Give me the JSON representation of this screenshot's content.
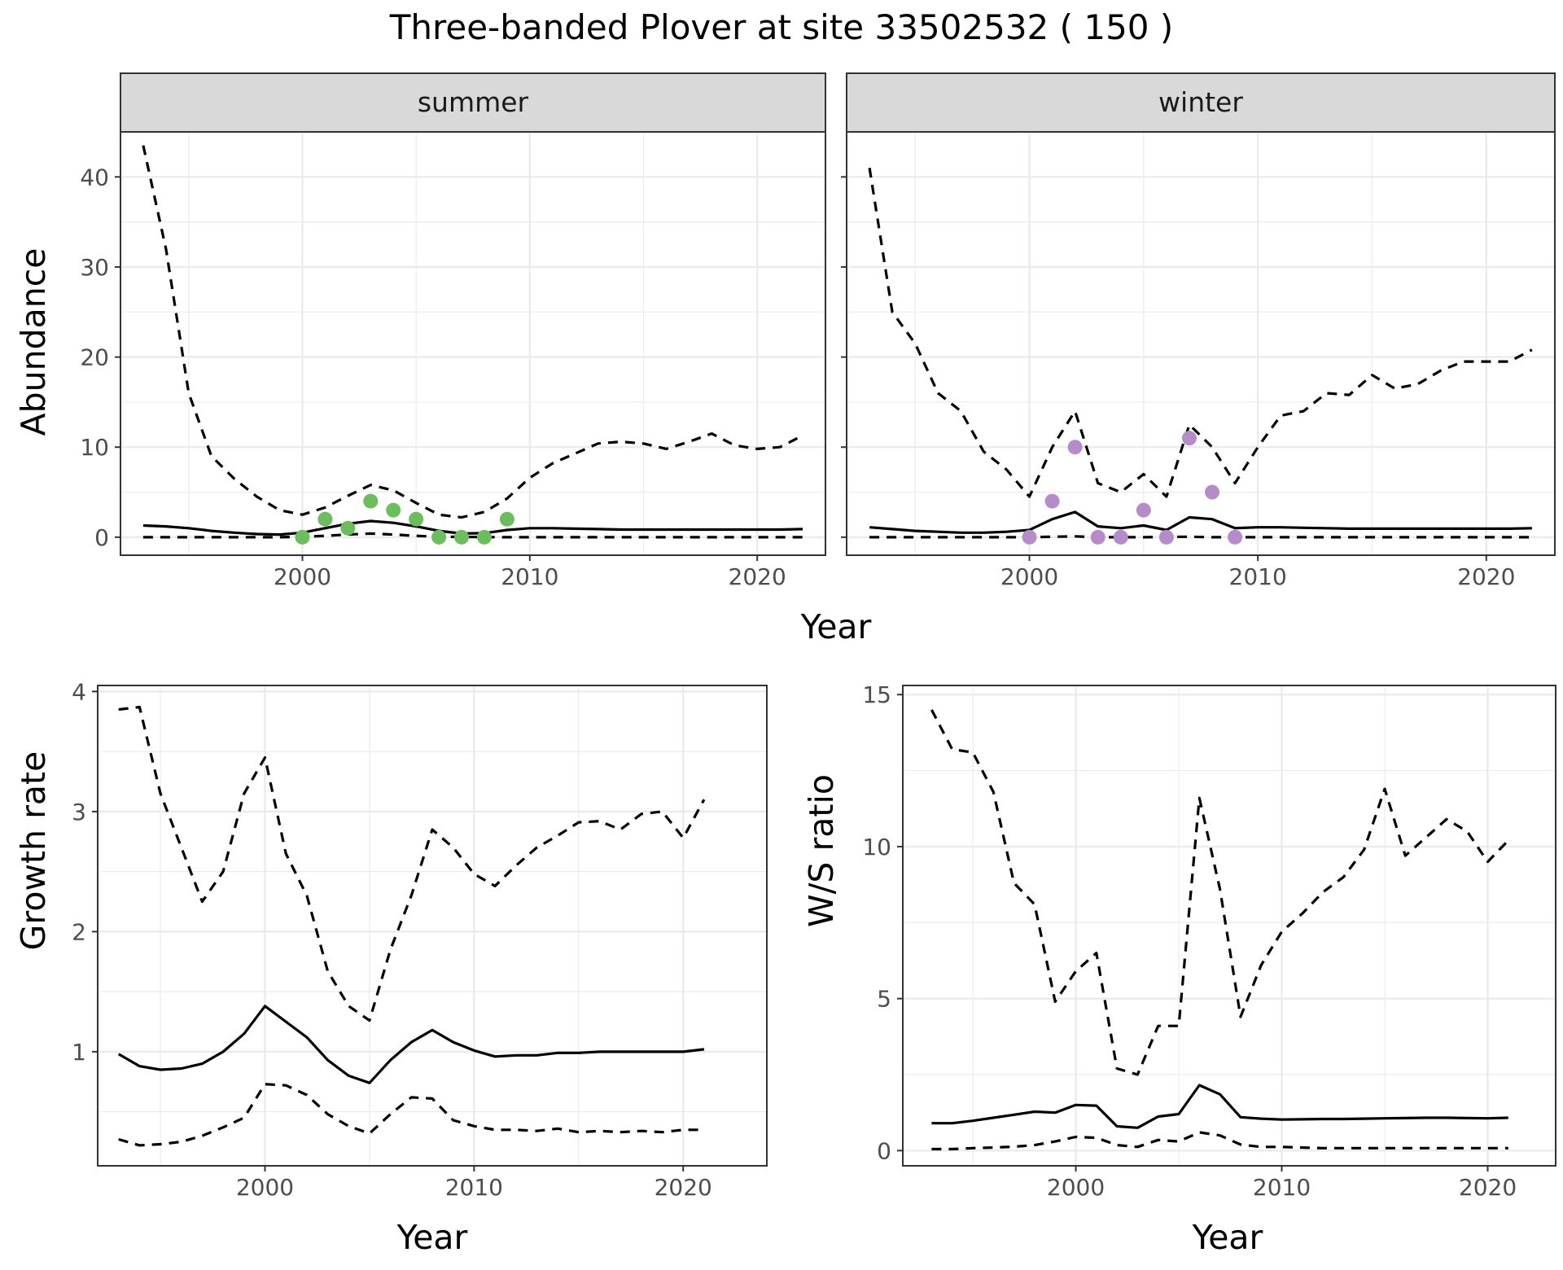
{
  "title": "Three-banded Plover at site 33502532 ( 150 )",
  "colors": {
    "summer_points": "#6BBE5B",
    "winter_points": "#B58BC9",
    "strip_fill": "#D9D9D9",
    "grid": "#EBEBEB",
    "panel_border": "#333333",
    "line": "#000000"
  },
  "chart_data": [
    {
      "type": "line",
      "title": "",
      "facet": "summer",
      "xlabel": "Year",
      "ylabel": "Abundance",
      "xlim": [
        1992,
        2023
      ],
      "ylim": [
        -2,
        45
      ],
      "x_ticks": [
        2000,
        2010,
        2020
      ],
      "y_ticks": [
        0,
        10,
        20,
        30,
        40
      ],
      "grid": true,
      "series": [
        {
          "style": "solid",
          "x": [
            1993,
            1994,
            1995,
            1996,
            1997,
            1998,
            1999,
            2000,
            2001,
            2002,
            2003,
            2004,
            2005,
            2006,
            2007,
            2008,
            2009,
            2010,
            2011,
            2012,
            2013,
            2014,
            2015,
            2016,
            2017,
            2018,
            2019,
            2020,
            2021,
            2022
          ],
          "y": [
            1.3,
            1.2,
            1.0,
            0.7,
            0.5,
            0.35,
            0.3,
            0.5,
            1.0,
            1.5,
            1.8,
            1.6,
            1.2,
            0.7,
            0.4,
            0.45,
            0.8,
            1.0,
            1.0,
            0.95,
            0.9,
            0.85,
            0.85,
            0.85,
            0.85,
            0.85,
            0.85,
            0.85,
            0.85,
            0.9
          ]
        },
        {
          "style": "dashed",
          "x": [
            1993,
            1994,
            1995,
            1996,
            1997,
            1998,
            1999,
            2000,
            2001,
            2002,
            2003,
            2004,
            2005,
            2006,
            2007,
            2008,
            2009,
            2010,
            2011,
            2012,
            2013,
            2014,
            2015,
            2016,
            2017,
            2018,
            2019,
            2020,
            2021,
            2022
          ],
          "y": [
            43.5,
            32,
            16,
            9,
            6.5,
            4.5,
            3,
            2.5,
            3.3,
            4.6,
            5.8,
            5.2,
            3.8,
            2.5,
            2.2,
            2.8,
            4.3,
            6.6,
            8.2,
            9.3,
            10.4,
            10.6,
            10.4,
            9.8,
            10.6,
            11.5,
            10.2,
            9.8,
            10.0,
            11.3
          ]
        },
        {
          "style": "dashed",
          "x": [
            1993,
            1996,
            1999,
            2000,
            2001,
            2002,
            2003,
            2004,
            2005,
            2006,
            2009,
            2012,
            2016,
            2020,
            2022
          ],
          "y": [
            0,
            0,
            0,
            0.05,
            0.15,
            0.3,
            0.4,
            0.3,
            0.15,
            0.05,
            0,
            0,
            0,
            0,
            0
          ]
        }
      ],
      "points": {
        "x": [
          2000,
          2001,
          2002,
          2003,
          2004,
          2005,
          2006,
          2007,
          2008,
          2009
        ],
        "y": [
          0,
          2,
          1,
          4,
          3,
          2,
          0,
          0,
          0,
          2
        ]
      }
    },
    {
      "type": "line",
      "title": "",
      "facet": "winter",
      "xlabel": "Year",
      "ylabel": "Abundance",
      "xlim": [
        1992,
        2023
      ],
      "ylim": [
        -2,
        45
      ],
      "x_ticks": [
        2000,
        2010,
        2020
      ],
      "y_ticks": [
        0,
        10,
        20,
        30,
        40
      ],
      "grid": true,
      "series": [
        {
          "style": "solid",
          "x": [
            1993,
            1994,
            1995,
            1996,
            1997,
            1998,
            1999,
            2000,
            2001,
            2002,
            2003,
            2004,
            2005,
            2006,
            2007,
            2008,
            2009,
            2010,
            2011,
            2012,
            2013,
            2014,
            2015,
            2016,
            2017,
            2018,
            2019,
            2020,
            2021,
            2022
          ],
          "y": [
            1.1,
            0.9,
            0.7,
            0.6,
            0.5,
            0.5,
            0.6,
            0.8,
            2.0,
            2.8,
            1.2,
            1.0,
            1.3,
            0.8,
            2.2,
            2.0,
            1.0,
            1.1,
            1.1,
            1.05,
            1.0,
            0.95,
            0.95,
            0.95,
            0.95,
            0.95,
            0.95,
            0.95,
            0.95,
            1.0
          ]
        },
        {
          "style": "dashed",
          "x": [
            1993,
            1994,
            1995,
            1996,
            1997,
            1998,
            1999,
            2000,
            2001,
            2002,
            2003,
            2004,
            2005,
            2006,
            2007,
            2008,
            2009,
            2010,
            2011,
            2012,
            2013,
            2014,
            2015,
            2016,
            2017,
            2018,
            2019,
            2020,
            2021,
            2022
          ],
          "y": [
            41,
            25,
            21.5,
            16,
            14,
            9.5,
            7.5,
            4.5,
            10,
            14,
            6,
            5,
            7,
            4.5,
            12.5,
            10,
            6,
            10,
            13.5,
            14,
            16,
            15.8,
            18,
            16.5,
            17,
            18.5,
            19.5,
            19.5,
            19.5,
            20.8
          ]
        },
        {
          "style": "dashed",
          "x": [
            1993,
            1999,
            2000,
            2001,
            2002,
            2003,
            2005,
            2007,
            2008,
            2009,
            2015,
            2022
          ],
          "y": [
            0,
            0,
            0,
            0.05,
            0.1,
            0,
            0,
            0.05,
            0,
            0,
            0,
            0
          ]
        }
      ],
      "points": {
        "x": [
          2000,
          2001,
          2002,
          2003,
          2004,
          2005,
          2006,
          2007,
          2008,
          2009
        ],
        "y": [
          0,
          4,
          10,
          0,
          0,
          3,
          0,
          11,
          5,
          0
        ]
      }
    },
    {
      "type": "line",
      "title": "",
      "xlabel": "Year",
      "ylabel": "Growth rate",
      "xlim": [
        1992,
        2024
      ],
      "ylim": [
        0.05,
        4.05
      ],
      "x_ticks": [
        2000,
        2010,
        2020
      ],
      "y_ticks": [
        1,
        2,
        3,
        4
      ],
      "grid": true,
      "series": [
        {
          "style": "solid",
          "x": [
            1993,
            1994,
            1995,
            1996,
            1997,
            1998,
            1999,
            2000,
            2001,
            2002,
            2003,
            2004,
            2005,
            2006,
            2007,
            2008,
            2009,
            2010,
            2011,
            2012,
            2013,
            2014,
            2015,
            2016,
            2017,
            2018,
            2019,
            2020,
            2021
          ],
          "y": [
            0.98,
            0.88,
            0.85,
            0.86,
            0.9,
            1.0,
            1.15,
            1.38,
            1.25,
            1.12,
            0.93,
            0.8,
            0.74,
            0.93,
            1.08,
            1.18,
            1.08,
            1.01,
            0.96,
            0.97,
            0.97,
            0.99,
            0.99,
            1.0,
            1.0,
            1.0,
            1.0,
            1.0,
            1.02
          ]
        },
        {
          "style": "dashed",
          "x": [
            1993,
            1994,
            1995,
            1996,
            1997,
            1998,
            1999,
            2000,
            2001,
            2002,
            2003,
            2004,
            2005,
            2006,
            2007,
            2008,
            2009,
            2010,
            2011,
            2012,
            2013,
            2014,
            2015,
            2016,
            2017,
            2018,
            2019,
            2020,
            2021
          ],
          "y": [
            3.85,
            3.87,
            3.15,
            2.7,
            2.25,
            2.5,
            3.15,
            3.45,
            2.65,
            2.3,
            1.67,
            1.38,
            1.26,
            1.85,
            2.3,
            2.85,
            2.7,
            2.48,
            2.38,
            2.55,
            2.7,
            2.8,
            2.91,
            2.92,
            2.85,
            2.98,
            3.0,
            2.78,
            3.1
          ]
        },
        {
          "style": "dashed",
          "x": [
            1993,
            1994,
            1995,
            1996,
            1997,
            1998,
            1999,
            2000,
            2001,
            2002,
            2003,
            2004,
            2005,
            2006,
            2007,
            2008,
            2009,
            2010,
            2011,
            2012,
            2013,
            2014,
            2015,
            2016,
            2017,
            2018,
            2019,
            2020,
            2021
          ],
          "y": [
            0.27,
            0.22,
            0.23,
            0.25,
            0.3,
            0.37,
            0.45,
            0.73,
            0.72,
            0.64,
            0.48,
            0.38,
            0.32,
            0.48,
            0.62,
            0.61,
            0.43,
            0.38,
            0.35,
            0.35,
            0.34,
            0.36,
            0.33,
            0.34,
            0.33,
            0.34,
            0.33,
            0.35,
            0.35
          ]
        }
      ]
    },
    {
      "type": "line",
      "title": "",
      "xlabel": "Year",
      "ylabel": "W/S ratio",
      "xlim": [
        1991.6,
        2023.3
      ],
      "ylim": [
        -0.5,
        15.3
      ],
      "x_ticks": [
        2000,
        2010,
        2020
      ],
      "y_ticks": [
        0,
        5,
        10,
        15
      ],
      "grid": true,
      "series": [
        {
          "style": "solid",
          "x": [
            1993,
            1994,
            1995,
            1996,
            1997,
            1998,
            1999,
            2000,
            2001,
            2002,
            2003,
            2004,
            2005,
            2006,
            2007,
            2008,
            2009,
            2010,
            2011,
            2012,
            2013,
            2014,
            2015,
            2016,
            2017,
            2018,
            2019,
            2020,
            2021
          ],
          "y": [
            0.9,
            0.9,
            0.98,
            1.08,
            1.18,
            1.28,
            1.25,
            1.5,
            1.48,
            0.8,
            0.75,
            1.12,
            1.2,
            2.15,
            1.85,
            1.1,
            1.05,
            1.02,
            1.03,
            1.04,
            1.04,
            1.05,
            1.06,
            1.07,
            1.08,
            1.08,
            1.07,
            1.06,
            1.08
          ]
        },
        {
          "style": "dashed",
          "x": [
            1993,
            1994,
            1995,
            1996,
            1997,
            1998,
            1999,
            2000,
            2001,
            2002,
            2003,
            2004,
            2005,
            2006,
            2007,
            2008,
            2009,
            2010,
            2011,
            2012,
            2013,
            2014,
            2015,
            2016,
            2017,
            2018,
            2019,
            2020,
            2021
          ],
          "y": [
            14.5,
            13.2,
            13.1,
            11.8,
            8.8,
            8.1,
            4.9,
            5.9,
            6.5,
            2.7,
            2.5,
            4.1,
            4.1,
            11.6,
            8.6,
            4.4,
            6.1,
            7.2,
            7.8,
            8.5,
            9.0,
            9.9,
            11.9,
            9.7,
            10.3,
            10.9,
            10.5,
            9.5,
            10.2
          ]
        },
        {
          "style": "dashed",
          "x": [
            1993,
            1994,
            1995,
            1996,
            1997,
            1998,
            1999,
            2000,
            2001,
            2002,
            2003,
            2004,
            2005,
            2006,
            2007,
            2008,
            2009,
            2010,
            2011,
            2012,
            2013,
            2014,
            2015,
            2016,
            2017,
            2018,
            2019,
            2020,
            2021
          ],
          "y": [
            0.05,
            0.05,
            0.08,
            0.1,
            0.13,
            0.18,
            0.3,
            0.45,
            0.42,
            0.18,
            0.12,
            0.35,
            0.3,
            0.6,
            0.5,
            0.2,
            0.12,
            0.12,
            0.1,
            0.08,
            0.08,
            0.08,
            0.08,
            0.08,
            0.08,
            0.08,
            0.08,
            0.08,
            0.08
          ]
        }
      ]
    }
  ]
}
